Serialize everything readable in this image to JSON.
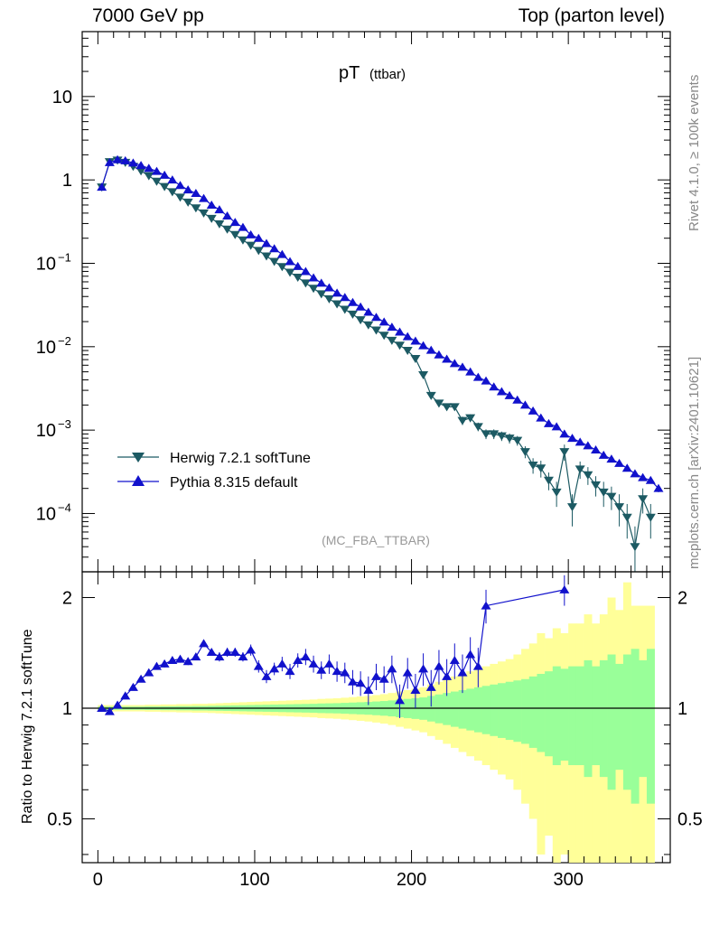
{
  "header": {
    "left": "7000 GeV pp",
    "right": "Top (parton level)"
  },
  "side": {
    "rivet": "Rivet 4.1.0, ≥ 100k events",
    "mcplots": "mcplots.cern.ch [arXiv:2401.10621]"
  },
  "colors": {
    "herwig": "#1c5a63",
    "pythia": "#1111cc",
    "band_inner": "#99ff99",
    "band_outer": "#ffff99"
  },
  "chart_data": [
    {
      "type": "line",
      "title": "pT",
      "subtitle": "(ttbar)",
      "watermark": "(MC_FBA_TTBAR)",
      "xlabel": "",
      "ylabel": "",
      "yscale": "log",
      "ylim": [
        2e-05,
        60
      ],
      "xlim": [
        -10,
        365
      ],
      "y_ticks": [
        {
          "value": 10,
          "label": "10",
          "sup": ""
        },
        {
          "value": 1,
          "label": "1",
          "sup": ""
        },
        {
          "value": 0.1,
          "label": "10",
          "sup": "−1"
        },
        {
          "value": 0.01,
          "label": "10",
          "sup": "−2"
        },
        {
          "value": 0.001,
          "label": "10",
          "sup": "−3"
        },
        {
          "value": 0.0001,
          "label": "10",
          "sup": "−4"
        }
      ],
      "legend_position": "bottom-left",
      "series": [
        {
          "name": "Herwig 7.2.1 softTune",
          "marker": "triangle-down",
          "x": [
            2.5,
            7.5,
            12.5,
            17.5,
            22.5,
            27.5,
            32.5,
            37.5,
            42.5,
            47.5,
            52.5,
            57.5,
            62.5,
            67.5,
            72.5,
            77.5,
            82.5,
            87.5,
            92.5,
            97.5,
            102.5,
            107.5,
            112.5,
            117.5,
            122.5,
            127.5,
            132.5,
            137.5,
            142.5,
            147.5,
            152.5,
            157.5,
            162.5,
            167.5,
            172.5,
            177.5,
            182.5,
            187.5,
            192.5,
            197.5,
            202.5,
            207.5,
            212.5,
            217.5,
            222.5,
            227.5,
            232.5,
            237.5,
            242.5,
            247.5,
            252.5,
            257.5,
            262.5,
            267.5,
            272.5,
            277.5,
            282.5,
            287.5,
            292.5,
            297.5,
            302.5,
            307.5,
            312.5,
            317.5,
            322.5,
            327.5,
            332.5,
            337.5,
            342.5,
            347.5,
            352.5
          ],
          "y": [
            0.82,
            1.65,
            1.72,
            1.62,
            1.45,
            1.28,
            1.12,
            0.96,
            0.83,
            0.72,
            0.62,
            0.54,
            0.46,
            0.4,
            0.345,
            0.297,
            0.256,
            0.221,
            0.19,
            0.164,
            0.142,
            0.122,
            0.105,
            0.091,
            0.078,
            0.068,
            0.058,
            0.05,
            0.043,
            0.0375,
            0.0325,
            0.028,
            0.0245,
            0.021,
            0.0182,
            0.0158,
            0.0137,
            0.0119,
            0.0104,
            0.009,
            0.0072,
            0.0046,
            0.0026,
            0.0021,
            0.0019,
            0.0019,
            0.0013,
            0.0014,
            0.0011,
            0.0009,
            0.0009,
            0.00085,
            0.0008,
            0.00075,
            0.00055,
            0.00038,
            0.00035,
            0.00025,
            0.00018,
            0.00055,
            0.00012,
            0.00034,
            0.00029,
            0.00022,
            0.00018,
            0.00016,
            0.00012,
            9e-05,
            4e-05,
            0.00015,
            9e-05
          ],
          "err": [
            0.01,
            0.02,
            0.02,
            0.02,
            0.015,
            0.013,
            0.011,
            0.01,
            0.008,
            0.007,
            0.006,
            0.005,
            0.005,
            0.004,
            0.0035,
            0.003,
            0.0026,
            0.0022,
            0.0019,
            0.0016,
            0.0014,
            0.0012,
            0.0011,
            0.0009,
            0.0008,
            0.0007,
            0.0006,
            0.0005,
            0.00045,
            0.0004,
            0.00035,
            0.0003,
            0.00028,
            0.00025,
            0.00022,
            0.0002,
            0.00018,
            0.00016,
            0.00015,
            0.00014,
            0.0001,
            0.00028,
            0.00022,
            0.0002,
            0.00018,
            0.00018,
            0.00015,
            0.00015,
            0.00013,
            0.00012,
            0.00012,
            0.00011,
            0.00011,
            0.0001,
            9e-05,
            8e-05,
            8e-05,
            6e-05,
            6e-05,
            0.00012,
            5e-05,
            8e-05,
            7e-05,
            6e-05,
            6e-05,
            5e-05,
            5e-05,
            4e-05,
            3e-05,
            5e-05,
            4e-05
          ]
        },
        {
          "name": "Pythia 8.315 default",
          "marker": "triangle-up",
          "x": [
            2.5,
            7.5,
            12.5,
            17.5,
            22.5,
            27.5,
            32.5,
            37.5,
            42.5,
            47.5,
            52.5,
            57.5,
            62.5,
            67.5,
            72.5,
            77.5,
            82.5,
            87.5,
            92.5,
            97.5,
            102.5,
            107.5,
            112.5,
            117.5,
            122.5,
            127.5,
            132.5,
            137.5,
            142.5,
            147.5,
            152.5,
            157.5,
            162.5,
            167.5,
            172.5,
            177.5,
            182.5,
            187.5,
            192.5,
            197.5,
            202.5,
            207.5,
            212.5,
            217.5,
            222.5,
            227.5,
            232.5,
            237.5,
            242.5,
            247.5,
            252.5,
            257.5,
            262.5,
            267.5,
            272.5,
            277.5,
            282.5,
            287.5,
            292.5,
            297.5,
            302.5,
            307.5,
            312.5,
            317.5,
            322.5,
            327.5,
            332.5,
            337.5,
            342.5,
            347.5,
            352.5,
            357.5
          ],
          "y": [
            0.82,
            1.62,
            1.75,
            1.7,
            1.6,
            1.49,
            1.38,
            1.27,
            1.14,
            1.0,
            0.86,
            0.76,
            0.69,
            0.6,
            0.5,
            0.44,
            0.37,
            0.31,
            0.27,
            0.22,
            0.2,
            0.173,
            0.15,
            0.128,
            0.105,
            0.092,
            0.08,
            0.067,
            0.058,
            0.051,
            0.044,
            0.039,
            0.034,
            0.03,
            0.026,
            0.0225,
            0.0198,
            0.0172,
            0.015,
            0.0132,
            0.0117,
            0.0103,
            0.0091,
            0.008,
            0.0071,
            0.0063,
            0.0057,
            0.005,
            0.0043,
            0.0039,
            0.0033,
            0.0029,
            0.0026,
            0.0023,
            0.002,
            0.0017,
            0.0014,
            0.0012,
            0.0011,
            0.0009,
            0.0008,
            0.00072,
            0.00065,
            0.00058,
            0.0005,
            0.00045,
            0.0004,
            0.00035,
            0.0003,
            0.00027,
            0.00025,
            0.0002
          ],
          "err": [
            0.01,
            0.02,
            0.02,
            0.02,
            0.02,
            0.015,
            0.014,
            0.013,
            0.011,
            0.01,
            0.009,
            0.008,
            0.007,
            0.006,
            0.005,
            0.0045,
            0.004,
            0.0035,
            0.003,
            0.0025,
            0.0022,
            0.002,
            0.0017,
            0.0015,
            0.0012,
            0.0011,
            0.0009,
            0.0008,
            0.0007,
            0.0006,
            0.0005,
            0.00045,
            0.0004,
            0.00035,
            0.0003,
            0.00028,
            0.00025,
            0.00023,
            0.0002,
            0.00018,
            0.00016,
            0.00015,
            0.00014,
            0.00013,
            0.00012,
            0.00011,
            0.0001,
            9e-05,
            9e-05,
            8e-05,
            8e-05,
            7e-05,
            7e-05,
            6e-05,
            6e-05,
            5e-05,
            5e-05,
            5e-05,
            4e-05,
            4e-05,
            4e-05,
            3e-05,
            3e-05,
            3e-05,
            3e-05,
            3e-05,
            3e-05,
            2e-05,
            2e-05,
            2e-05,
            2e-05,
            2e-05
          ]
        }
      ]
    },
    {
      "type": "line",
      "title": "",
      "xlabel": "",
      "ylabel": "Ratio to Herwig 7.2.1 softTune",
      "yscale": "log",
      "ylim": [
        0.38,
        2.35
      ],
      "xlim": [
        -10,
        365
      ],
      "x_ticks": [
        0,
        100,
        200,
        300
      ],
      "y_ticks": [
        0.5,
        1,
        2
      ],
      "reference_line": 1,
      "bands": {
        "x_edges": [
          0,
          5,
          10,
          15,
          20,
          25,
          30,
          35,
          40,
          45,
          50,
          55,
          60,
          65,
          70,
          75,
          80,
          85,
          90,
          95,
          100,
          105,
          110,
          115,
          120,
          125,
          130,
          135,
          140,
          145,
          150,
          155,
          160,
          165,
          170,
          175,
          180,
          185,
          190,
          195,
          200,
          205,
          210,
          215,
          220,
          225,
          230,
          235,
          240,
          245,
          250,
          255,
          260,
          265,
          270,
          275,
          280,
          285,
          290,
          295,
          300,
          305,
          310,
          315,
          320,
          325,
          330,
          335,
          340,
          345,
          350,
          355
        ],
        "inner": [
          0.01,
          0.01,
          0.01,
          0.01,
          0.01,
          0.01,
          0.011,
          0.011,
          0.012,
          0.012,
          0.013,
          0.013,
          0.014,
          0.014,
          0.015,
          0.016,
          0.017,
          0.018,
          0.019,
          0.02,
          0.021,
          0.022,
          0.023,
          0.024,
          0.025,
          0.026,
          0.027,
          0.028,
          0.03,
          0.031,
          0.032,
          0.034,
          0.036,
          0.038,
          0.04,
          0.043,
          0.046,
          0.05,
          0.055,
          0.06,
          0.065,
          0.07,
          0.08,
          0.09,
          0.1,
          0.11,
          0.12,
          0.13,
          0.14,
          0.15,
          0.16,
          0.17,
          0.18,
          0.19,
          0.2,
          0.22,
          0.24,
          0.26,
          0.3,
          0.28,
          0.3,
          0.3,
          0.35,
          0.3,
          0.35,
          0.4,
          0.32,
          0.4,
          0.45,
          0.35,
          0.45
        ],
        "outer": [
          0.02,
          0.02,
          0.02,
          0.02,
          0.02,
          0.02,
          0.022,
          0.022,
          0.024,
          0.024,
          0.026,
          0.026,
          0.028,
          0.028,
          0.03,
          0.032,
          0.034,
          0.036,
          0.038,
          0.04,
          0.042,
          0.044,
          0.046,
          0.048,
          0.05,
          0.052,
          0.054,
          0.056,
          0.06,
          0.062,
          0.064,
          0.068,
          0.072,
          0.076,
          0.08,
          0.086,
          0.092,
          0.1,
          0.11,
          0.12,
          0.13,
          0.14,
          0.16,
          0.18,
          0.2,
          0.22,
          0.24,
          0.26,
          0.28,
          0.3,
          0.32,
          0.34,
          0.36,
          0.4,
          0.45,
          0.5,
          0.6,
          0.55,
          0.65,
          0.6,
          0.7,
          0.7,
          0.8,
          0.7,
          0.8,
          1.0,
          0.85,
          1.2,
          0.9,
          0.9,
          0.9
        ]
      },
      "series": [
        {
          "name": "Pythia 8.315 default",
          "marker": "triangle-up",
          "x": [
            2.5,
            7.5,
            12.5,
            17.5,
            22.5,
            27.5,
            32.5,
            37.5,
            42.5,
            47.5,
            52.5,
            57.5,
            62.5,
            67.5,
            72.5,
            77.5,
            82.5,
            87.5,
            92.5,
            97.5,
            102.5,
            107.5,
            112.5,
            117.5,
            122.5,
            127.5,
            132.5,
            137.5,
            142.5,
            147.5,
            152.5,
            157.5,
            162.5,
            167.5,
            172.5,
            177.5,
            182.5,
            187.5,
            192.5,
            197.5,
            202.5,
            207.5,
            212.5,
            217.5,
            222.5,
            227.5,
            232.5,
            237.5,
            242.5,
            247.5,
            297.5
          ],
          "y": [
            1.0,
            0.98,
            1.02,
            1.08,
            1.14,
            1.2,
            1.25,
            1.3,
            1.32,
            1.35,
            1.36,
            1.34,
            1.38,
            1.5,
            1.42,
            1.38,
            1.42,
            1.42,
            1.38,
            1.44,
            1.3,
            1.22,
            1.28,
            1.32,
            1.26,
            1.35,
            1.38,
            1.32,
            1.27,
            1.32,
            1.26,
            1.25,
            1.18,
            1.17,
            1.12,
            1.22,
            1.2,
            1.28,
            1.05,
            1.25,
            1.12,
            1.28,
            1.14,
            1.3,
            1.22,
            1.35,
            1.25,
            1.4,
            1.3,
            1.9,
            2.1
          ],
          "err": [
            0.02,
            0.02,
            0.02,
            0.02,
            0.02,
            0.02,
            0.02,
            0.02,
            0.03,
            0.03,
            0.03,
            0.03,
            0.03,
            0.03,
            0.03,
            0.04,
            0.04,
            0.04,
            0.04,
            0.05,
            0.05,
            0.05,
            0.05,
            0.06,
            0.06,
            0.06,
            0.07,
            0.07,
            0.07,
            0.08,
            0.08,
            0.08,
            0.09,
            0.09,
            0.1,
            0.1,
            0.1,
            0.11,
            0.11,
            0.12,
            0.12,
            0.13,
            0.13,
            0.14,
            0.14,
            0.15,
            0.15,
            0.16,
            0.16,
            0.2,
            0.2
          ]
        }
      ]
    }
  ]
}
